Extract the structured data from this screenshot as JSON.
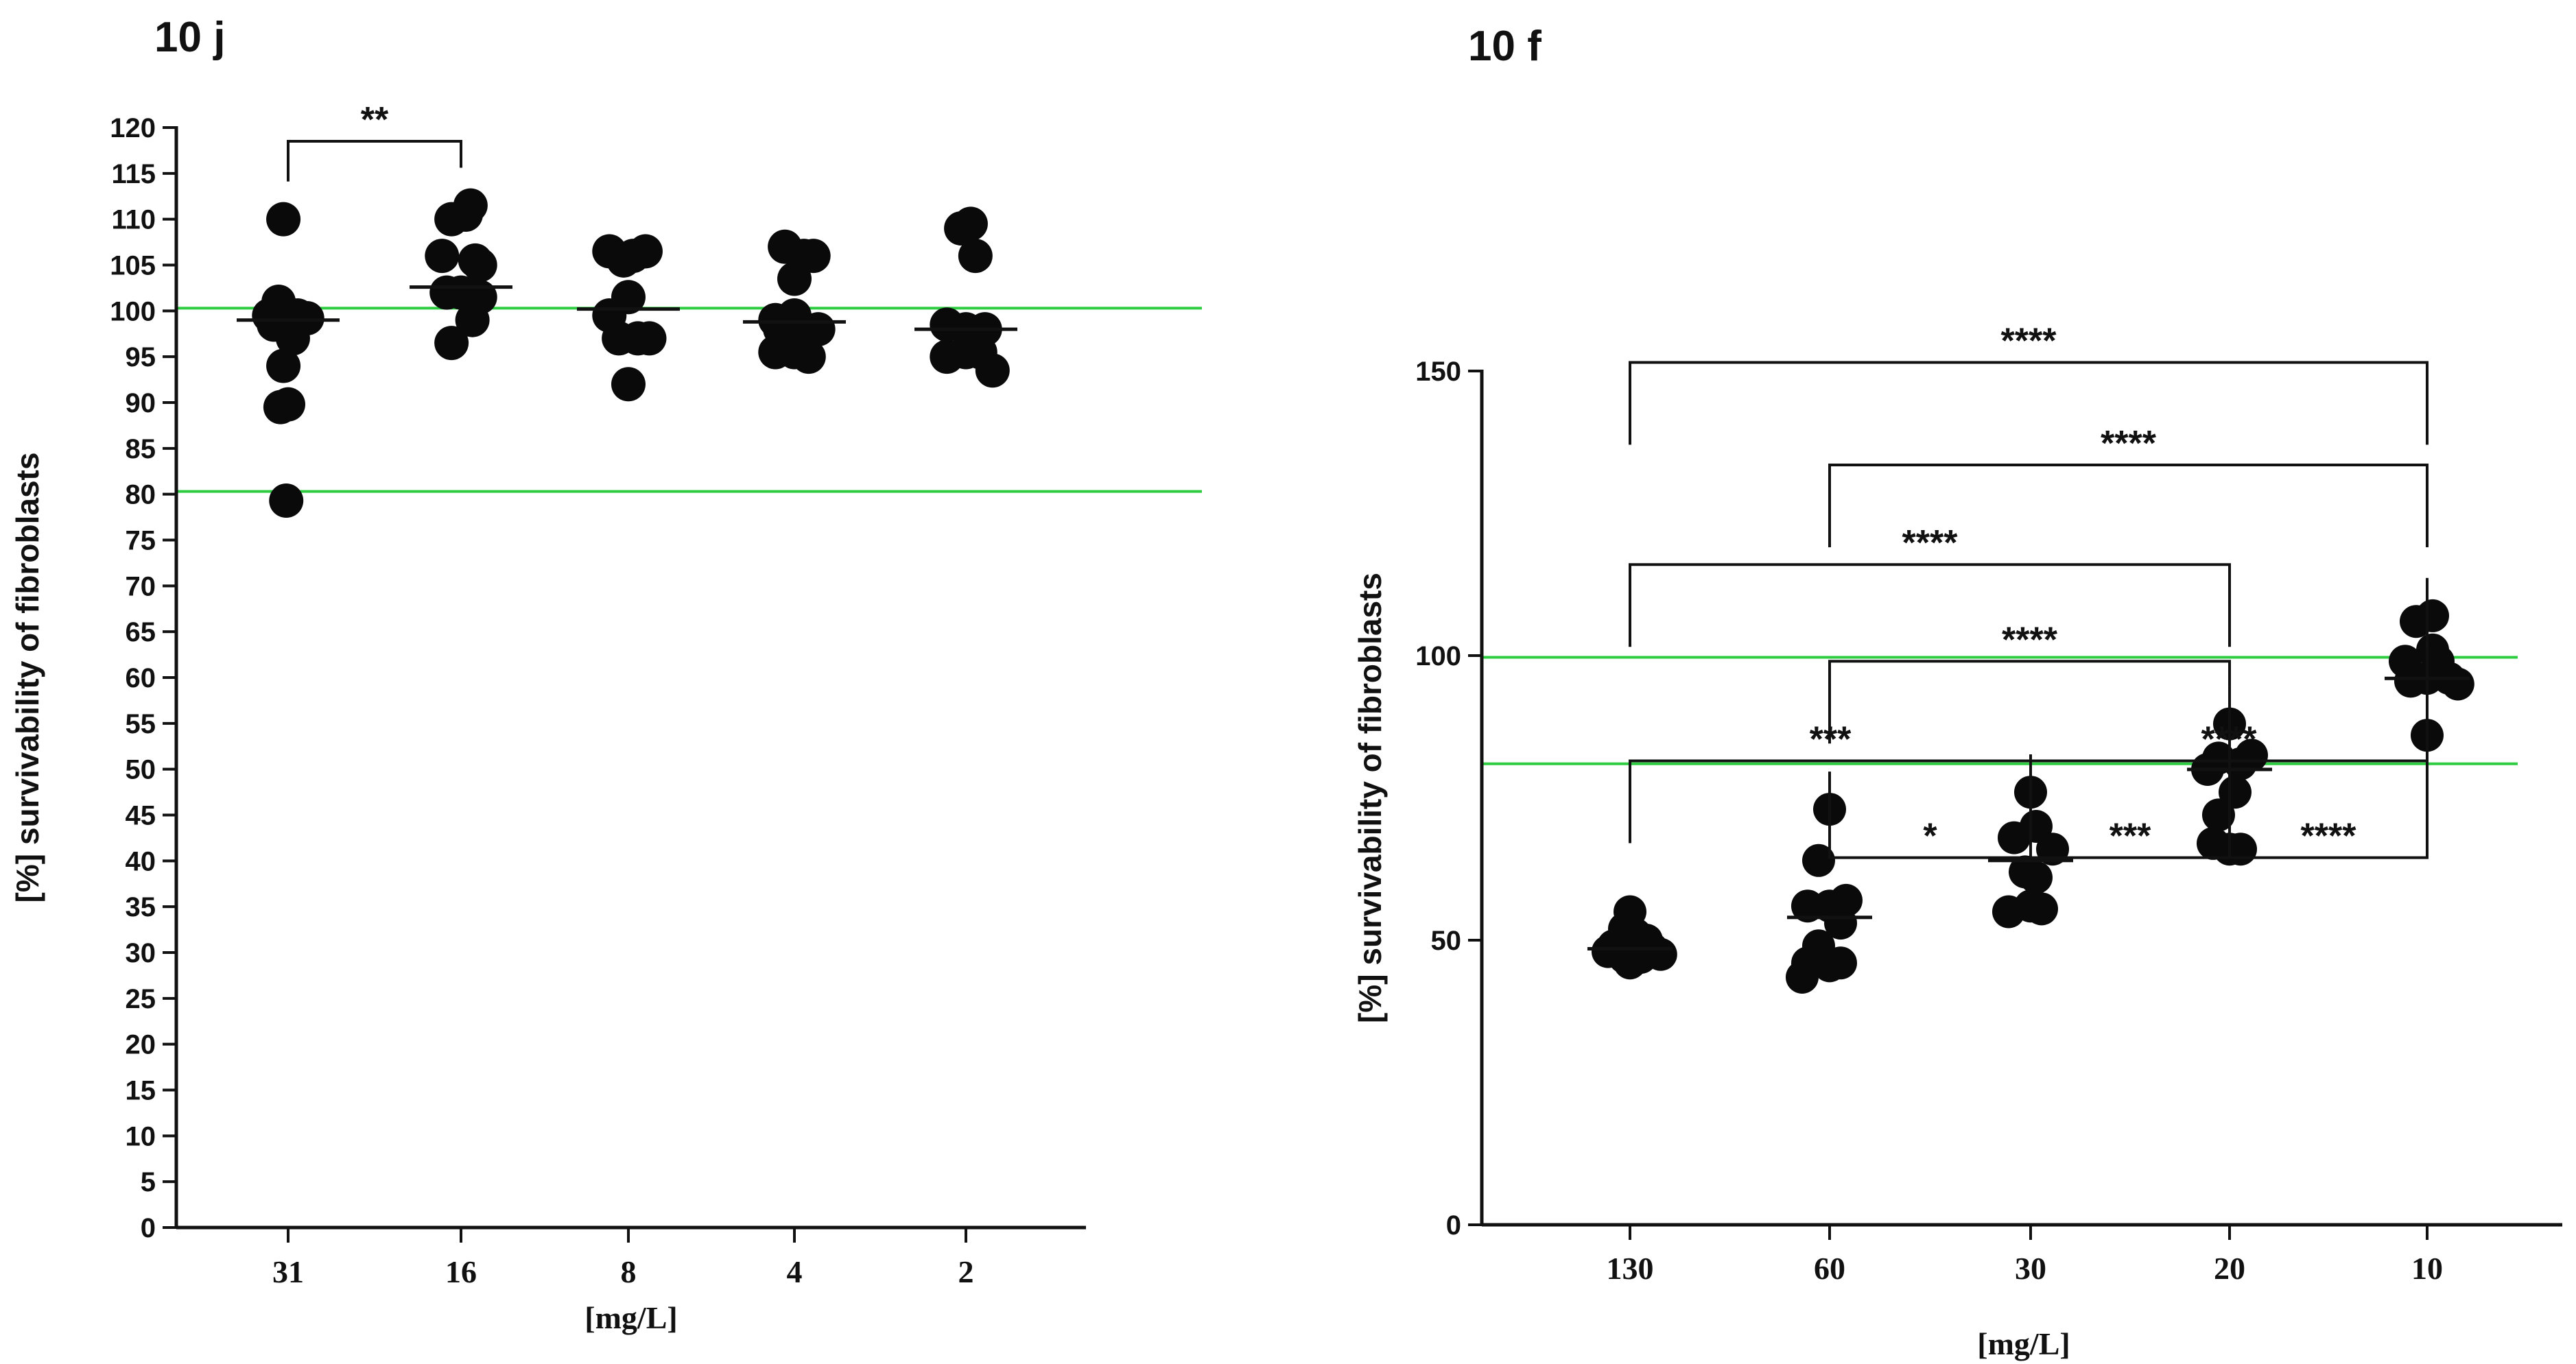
{
  "chart_data": [
    {
      "panel_label": "10 j",
      "type": "scatter",
      "ylabel": "[%] survivability of fibroblasts",
      "xlabel": "[mg/L]",
      "categories": [
        "31",
        "16",
        "8",
        "4",
        "2"
      ],
      "ylim": [
        0,
        120
      ],
      "yticks": [
        0,
        5,
        10,
        15,
        20,
        25,
        30,
        35,
        40,
        45,
        50,
        55,
        60,
        65,
        70,
        75,
        80,
        85,
        90,
        95,
        100,
        105,
        110,
        115,
        120
      ],
      "reference_lines": [
        {
          "y": 100.3,
          "color": "#2ecc40"
        },
        {
          "y": 80.3,
          "color": "#2ecc40"
        }
      ],
      "points": [
        [
          [
            -0.05,
            110
          ],
          [
            -0.1,
            101
          ],
          [
            -0.2,
            99.5
          ],
          [
            -0.04,
            99.2
          ],
          [
            0.1,
            99.5
          ],
          [
            0.2,
            99.2
          ],
          [
            -0.15,
            98.5
          ],
          [
            0.05,
            97
          ],
          [
            -0.05,
            94
          ],
          [
            0,
            89.8
          ],
          [
            -0.08,
            89.5
          ],
          [
            -0.02,
            79.3
          ]
        ],
        [
          [
            -0.1,
            110
          ],
          [
            0.05,
            110.5
          ],
          [
            0.1,
            111.5
          ],
          [
            -0.2,
            106
          ],
          [
            0.15,
            105.5
          ],
          [
            0.2,
            105
          ],
          [
            -0.15,
            102
          ],
          [
            0.0,
            102
          ],
          [
            0.1,
            101.8
          ],
          [
            0.2,
            101.5
          ],
          [
            -0.1,
            96.5
          ],
          [
            0.12,
            99
          ]
        ],
        [
          [
            -0.2,
            106.5
          ],
          [
            -0.05,
            105.5
          ],
          [
            0.05,
            106
          ],
          [
            0.18,
            106.5
          ],
          [
            -0.2,
            99.5
          ],
          [
            0.0,
            101.5
          ],
          [
            -0.1,
            97
          ],
          [
            0.1,
            97
          ],
          [
            0.22,
            97
          ],
          [
            0.0,
            92
          ]
        ],
        [
          [
            -0.1,
            107
          ],
          [
            0.1,
            106
          ],
          [
            0.2,
            106
          ],
          [
            0.0,
            103.5
          ],
          [
            -0.2,
            99
          ],
          [
            0.0,
            99.5
          ],
          [
            -0.15,
            98
          ],
          [
            0.05,
            97
          ],
          [
            0.25,
            98
          ],
          [
            -0.2,
            95.5
          ],
          [
            0.0,
            95.5
          ],
          [
            0.15,
            95
          ]
        ],
        [
          [
            -0.05,
            109
          ],
          [
            0.05,
            109.5
          ],
          [
            0.1,
            106
          ],
          [
            -0.2,
            98.5
          ],
          [
            0.0,
            98
          ],
          [
            0.2,
            98
          ],
          [
            -0.2,
            95
          ],
          [
            0.0,
            95.5
          ],
          [
            0.15,
            95.5
          ],
          [
            0.28,
            93.5
          ]
        ]
      ],
      "medians": [
        99,
        102.6,
        100.2,
        98.8,
        98
      ],
      "significance": [
        {
          "from": 0,
          "to": 1,
          "label": "**",
          "y": 118.5
        }
      ]
    },
    {
      "panel_label": "10 f",
      "type": "scatter",
      "ylabel": "[%] survivability of fibroblasts",
      "xlabel": "[mg/L]",
      "categories": [
        "130",
        "60",
        "30",
        "20",
        "10"
      ],
      "ylim": [
        0,
        150
      ],
      "yticks": [
        0,
        50,
        100,
        150
      ],
      "reference_lines": [
        {
          "y": 99.7,
          "color": "#2ecc40"
        },
        {
          "y": 81,
          "color": "#2ecc40"
        }
      ],
      "points": [
        [
          [
            -0.15,
            49
          ],
          [
            0.0,
            55
          ],
          [
            -0.05,
            52
          ],
          [
            0.05,
            51
          ],
          [
            0.15,
            50
          ],
          [
            0.2,
            48.5
          ],
          [
            0.28,
            47.5
          ],
          [
            -0.2,
            48
          ],
          [
            -0.05,
            47
          ],
          [
            0.1,
            47
          ],
          [
            0.0,
            46
          ]
        ],
        [
          [
            0.0,
            73
          ],
          [
            -0.1,
            64
          ],
          [
            0.15,
            57
          ],
          [
            -0.2,
            56
          ],
          [
            0.0,
            56
          ],
          [
            0.1,
            53
          ],
          [
            -0.1,
            49
          ],
          [
            -0.2,
            46
          ],
          [
            0.0,
            45.5
          ],
          [
            0.1,
            46
          ],
          [
            -0.25,
            43.5
          ]
        ],
        [
          [
            0.0,
            76
          ],
          [
            -0.15,
            68
          ],
          [
            0.05,
            70
          ],
          [
            0.2,
            66
          ],
          [
            -0.05,
            62
          ],
          [
            0.05,
            61
          ],
          [
            -0.2,
            55
          ],
          [
            0.0,
            56
          ],
          [
            0.1,
            55.5
          ]
        ],
        [
          [
            -0.1,
            82
          ],
          [
            0.0,
            88
          ],
          [
            0.2,
            82.5
          ],
          [
            0.1,
            81
          ],
          [
            -0.2,
            80
          ],
          [
            0.05,
            76
          ],
          [
            -0.1,
            72
          ],
          [
            -0.15,
            67
          ],
          [
            0.0,
            66
          ],
          [
            0.1,
            66
          ]
        ],
        [
          [
            -0.1,
            106
          ],
          [
            0.05,
            107
          ],
          [
            0.05,
            101
          ],
          [
            -0.2,
            99
          ],
          [
            0.1,
            99
          ],
          [
            -0.15,
            95.5
          ],
          [
            0.0,
            96
          ],
          [
            0.2,
            96
          ],
          [
            0.28,
            95
          ],
          [
            0.0,
            86
          ]
        ]
      ],
      "medians": [
        48.5,
        54,
        64,
        80,
        96
      ],
      "significance": [
        {
          "from": 0,
          "to": 4,
          "label": "****",
          "y": 151.5
        },
        {
          "from": 1,
          "to": 4,
          "label": "****",
          "y": 133.5
        },
        {
          "from": 0,
          "to": 3,
          "label": "****",
          "y": 116
        },
        {
          "from": 1,
          "to": 3,
          "label": "****",
          "y": 99
        },
        {
          "from": 0,
          "to": 2,
          "label": "***",
          "y": 81.5
        },
        {
          "from": 2,
          "to": 4,
          "label": "****",
          "y": 81.5
        },
        {
          "from": 1,
          "to": 2,
          "label": "*",
          "y": 64.5
        },
        {
          "from": 2,
          "to": 3,
          "label": "***",
          "y": 64.5
        },
        {
          "from": 3,
          "to": 4,
          "label": "****",
          "y": 64.5
        }
      ]
    }
  ]
}
